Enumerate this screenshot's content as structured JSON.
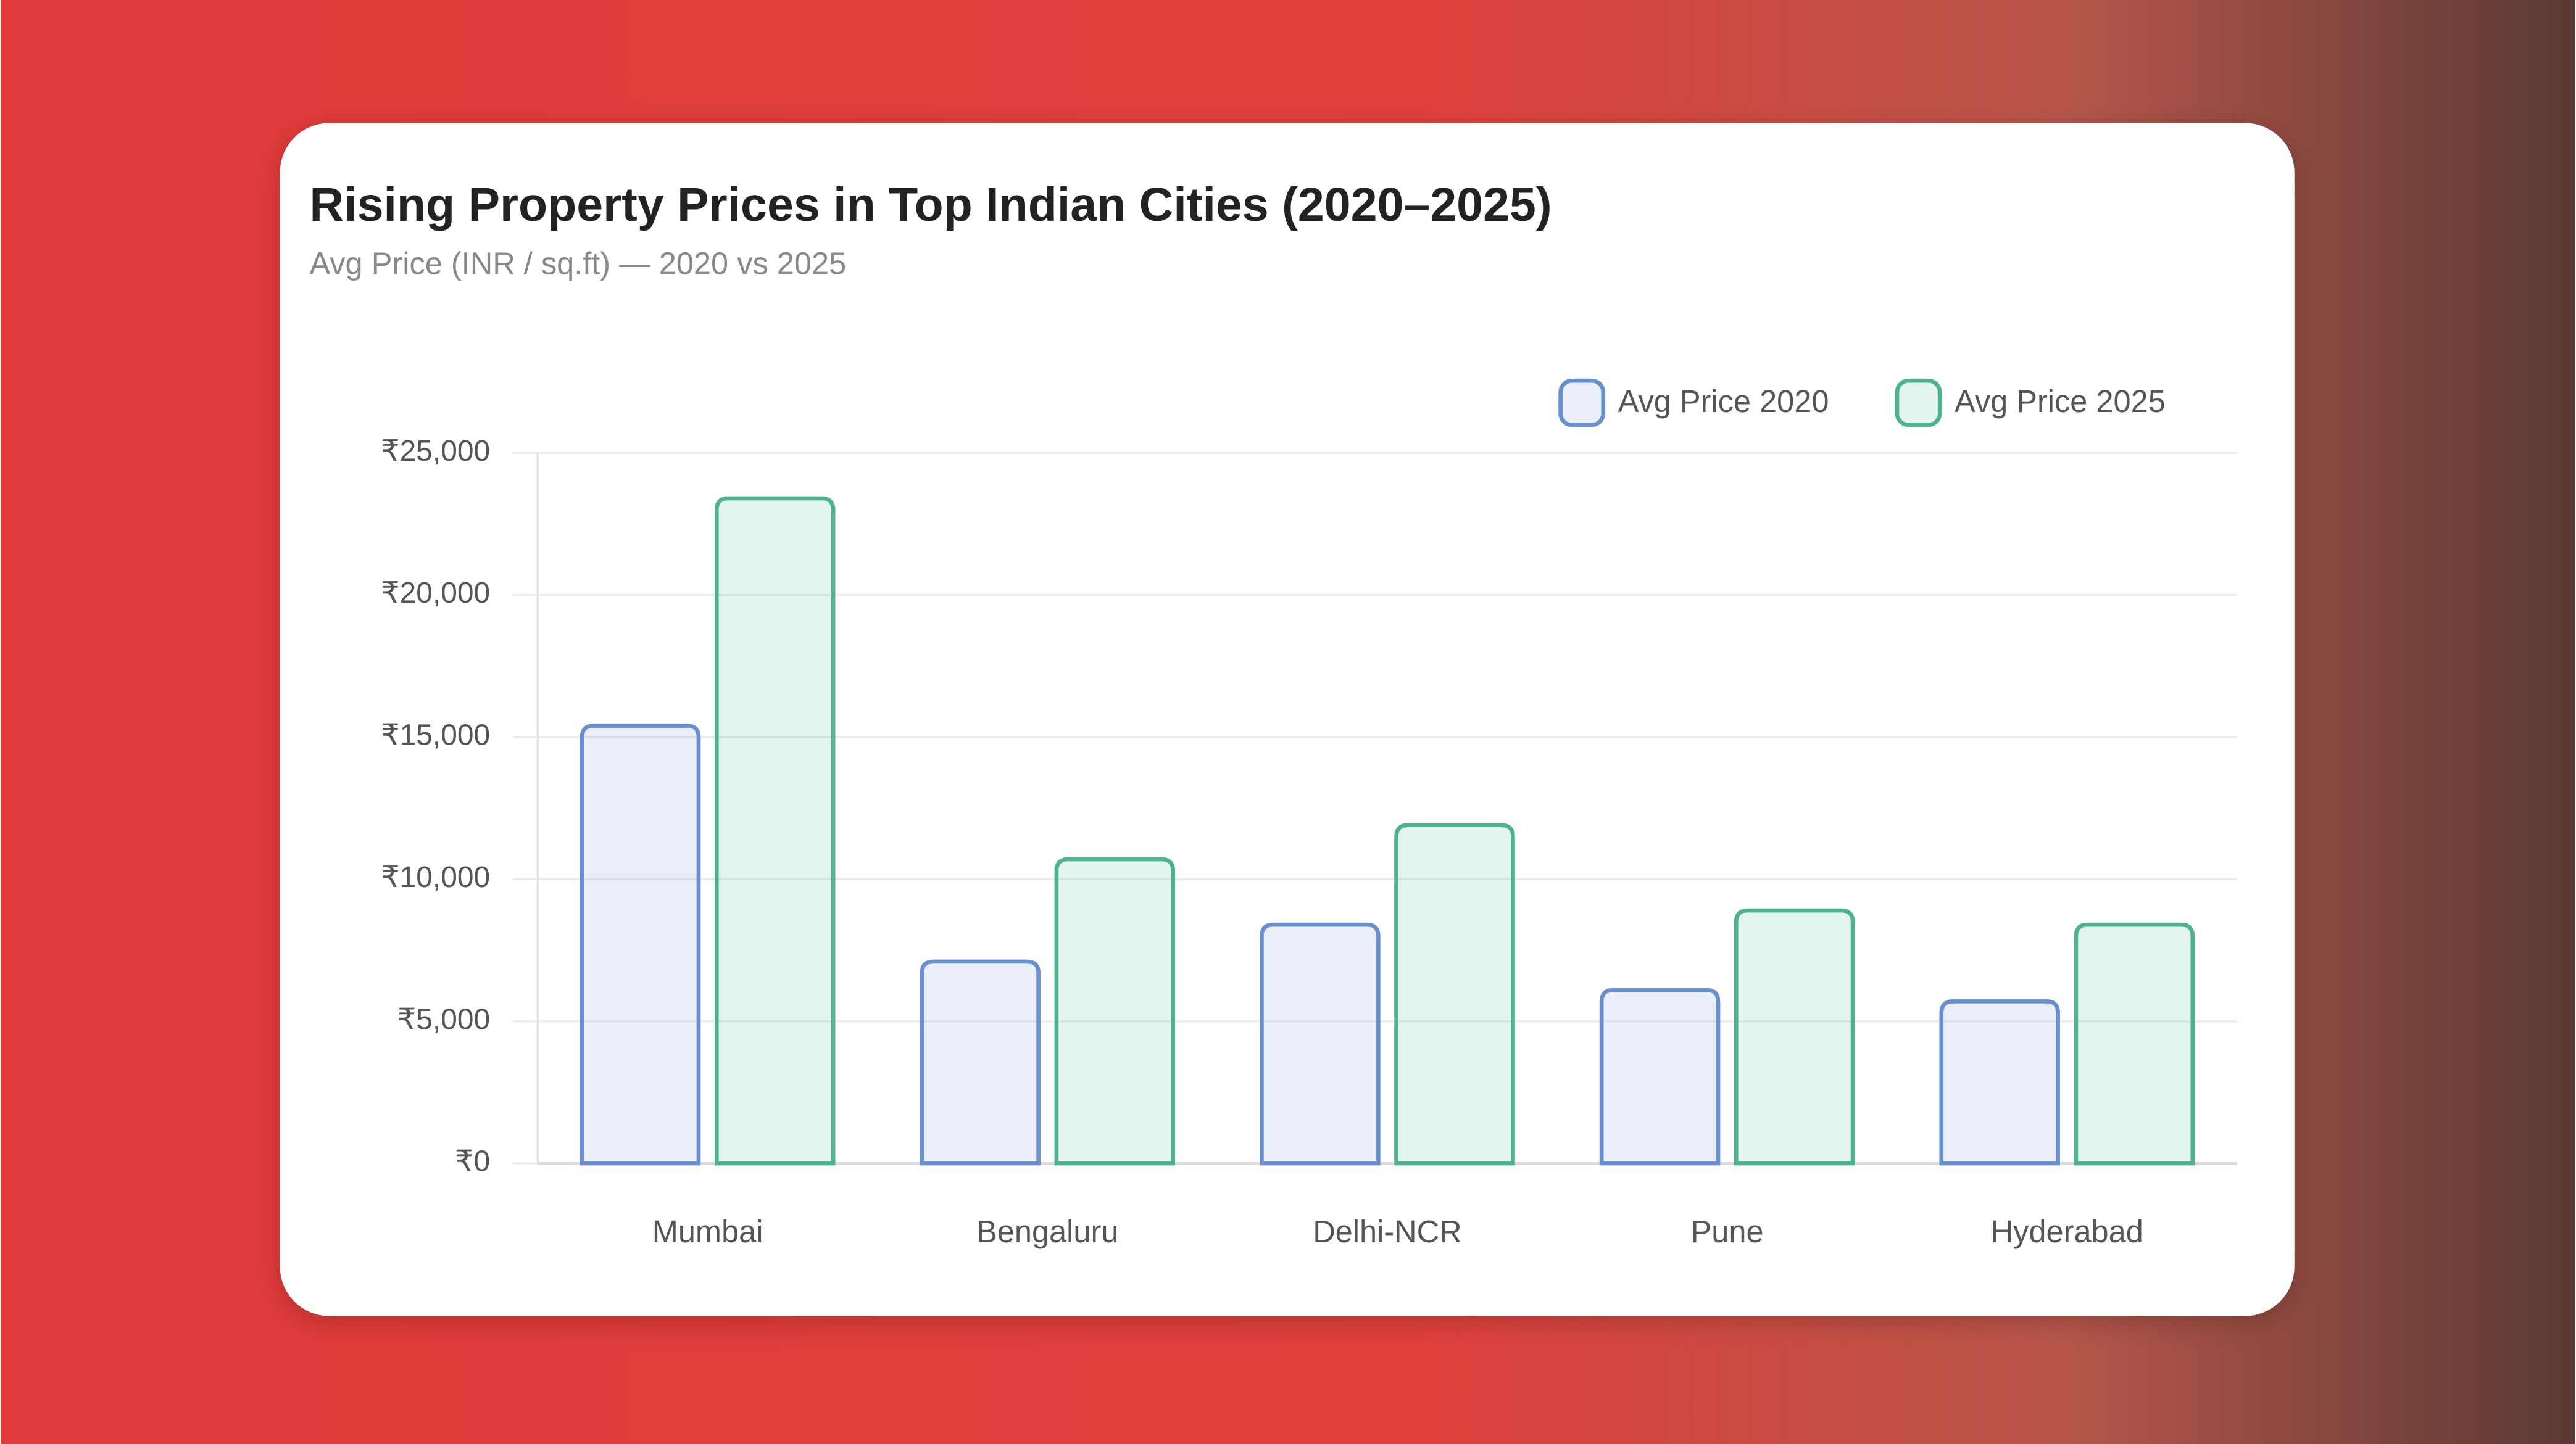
{
  "chart_data": {
    "type": "bar",
    "title": "Rising Property Prices in Top Indian Cities (2020–2025)",
    "subtitle": "Avg Price (INR / sq.ft) — 2020 vs 2025",
    "categories": [
      "Mumbai",
      "Bengaluru",
      "Delhi-NCR",
      "Pune",
      "Hyderabad"
    ],
    "series": [
      {
        "name": "Avg Price 2020",
        "color": "#6a8fcf",
        "values": [
          15400,
          7100,
          8400,
          6100,
          5700
        ]
      },
      {
        "name": "Avg Price 2025",
        "color": "#4db28f",
        "values": [
          23400,
          10700,
          11900,
          8900,
          8400
        ]
      }
    ],
    "ylim": [
      0,
      25000
    ],
    "yticks": [
      {
        "value": 0,
        "label": "₹0"
      },
      {
        "value": 5000,
        "label": "₹5,000"
      },
      {
        "value": 10000,
        "label": "₹10,000"
      },
      {
        "value": 15000,
        "label": "₹15,000"
      },
      {
        "value": 20000,
        "label": "₹20,000"
      },
      {
        "value": 25000,
        "label": "₹25,000"
      }
    ],
    "grid": true,
    "legend": "top-right"
  }
}
